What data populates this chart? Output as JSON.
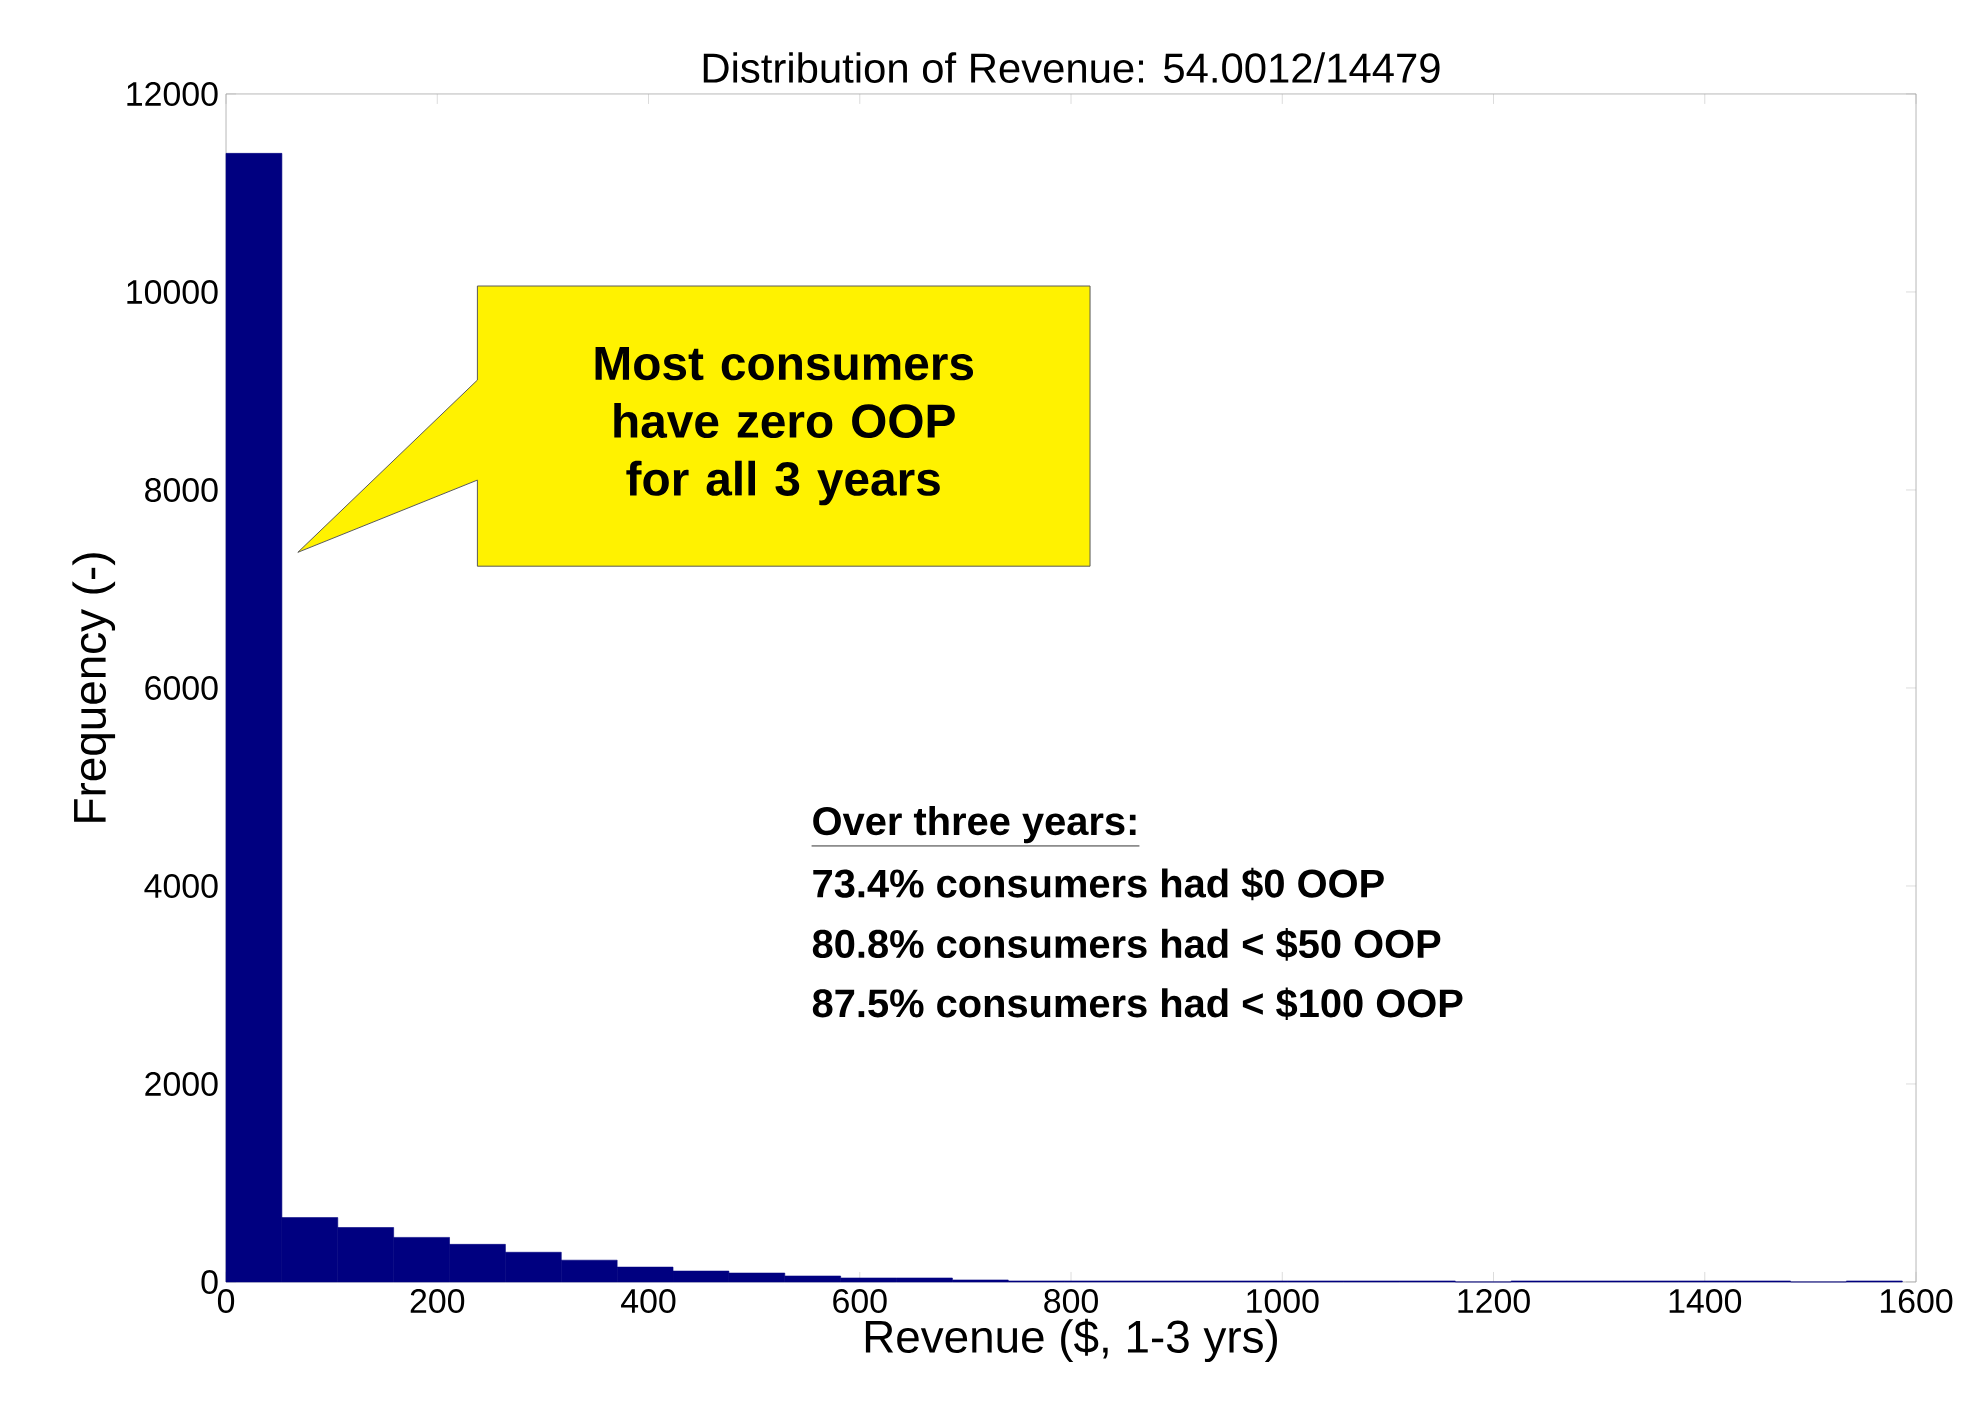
{
  "chart_data": {
    "type": "histogram",
    "title": "Distribution of Revenue: 54.0012/14479",
    "xlabel": "Revenue ($, 1-3 yrs)",
    "ylabel": "Frequency (-)",
    "bins": [
      0,
      52.9,
      105.8,
      158.7,
      211.6,
      264.5,
      317.4,
      370.3,
      423.2,
      476.1,
      529,
      581.9,
      634.8,
      687.7,
      740.6,
      793.5,
      846.4,
      899.3,
      952.2,
      1005.1,
      1058,
      1110.9,
      1163.8,
      1216.7,
      1269.6,
      1322.5,
      1375.4,
      1428.3,
      1481.2,
      1534.1,
      1587
    ],
    "values": [
      11400,
      650,
      550,
      450,
      380,
      300,
      220,
      150,
      110,
      90,
      60,
      40,
      40,
      20,
      10,
      10,
      10,
      10,
      10,
      10,
      10,
      10,
      0,
      10,
      10,
      10,
      10,
      10,
      0,
      10
    ],
    "color": "#000080",
    "xlim": [
      0,
      1600
    ],
    "ylim": [
      0,
      12000
    ],
    "xticks": [
      0,
      200,
      400,
      600,
      800,
      1000,
      1200,
      1400,
      1600
    ],
    "yticks": [
      0,
      2000,
      4000,
      6000,
      8000,
      10000,
      12000
    ],
    "annotations": [
      "Most consumers have zero OOP for all 3 years",
      "Over three years:",
      "73.4% consumers had $0 OOP",
      "80.8% consumers had < $50 OOP",
      "87.5% consumers had < $100 OOP"
    ]
  }
}
